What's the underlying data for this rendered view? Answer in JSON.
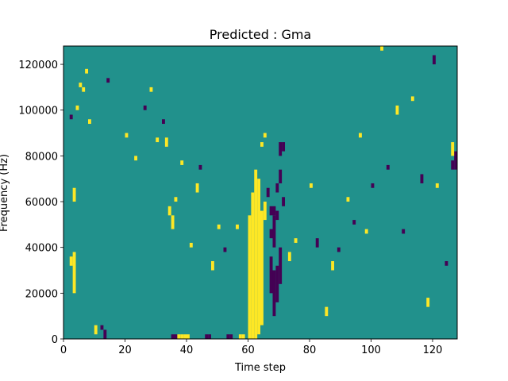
{
  "chart_data": {
    "type": "heatmap",
    "title": "Predicted : Gma",
    "xlabel": "Time step",
    "ylabel": "Frequency (Hz)",
    "xlim": [
      0,
      128
    ],
    "ylim": [
      0,
      128000
    ],
    "xticks": [
      0,
      20,
      40,
      60,
      80,
      100,
      120
    ],
    "yticks": [
      0,
      20000,
      40000,
      60000,
      80000,
      100000,
      120000
    ],
    "xtick_labels": [
      "0",
      "20",
      "40",
      "60",
      "80",
      "100",
      "120"
    ],
    "ytick_labels": [
      "0",
      "20000",
      "40000",
      "60000",
      "80000",
      "100000",
      "120000"
    ],
    "n_time_steps": 128,
    "n_freq_bins": 64,
    "value_levels": [
      -1,
      0,
      1
    ],
    "colors": {
      "low": "#440154",
      "mid": "#21918c",
      "high": "#fde725"
    },
    "background_level": 0,
    "cells": [
      {
        "t": 60,
        "f0": 0,
        "f1": 27,
        "v": 1
      },
      {
        "t": 61,
        "f0": 0,
        "f1": 32,
        "v": 1
      },
      {
        "t": 62,
        "f0": 0,
        "f1": 37,
        "v": 1
      },
      {
        "t": 63,
        "f0": 1,
        "f1": 35,
        "v": 1
      },
      {
        "t": 64,
        "f0": 3,
        "f1": 28,
        "v": 1
      },
      {
        "t": 65,
        "f0": 26,
        "f1": 30,
        "v": 1
      },
      {
        "t": 56,
        "f0": 24,
        "f1": 25,
        "v": 1
      },
      {
        "t": 64,
        "f0": 42,
        "f1": 43,
        "v": 1
      },
      {
        "t": 65,
        "f0": 44,
        "f1": 45,
        "v": 1
      },
      {
        "t": 35,
        "f0": 0,
        "f1": 1,
        "v": -1
      },
      {
        "t": 36,
        "f0": 0,
        "f1": 1,
        "v": -1
      },
      {
        "t": 37,
        "f0": 0,
        "f1": 1,
        "v": 1
      },
      {
        "t": 38,
        "f0": 0,
        "f1": 1,
        "v": 1
      },
      {
        "t": 39,
        "f0": 0,
        "f1": 1,
        "v": 1
      },
      {
        "t": 40,
        "f0": 0,
        "f1": 1,
        "v": 1
      },
      {
        "t": 46,
        "f0": 0,
        "f1": 1,
        "v": -1
      },
      {
        "t": 47,
        "f0": 0,
        "f1": 1,
        "v": -1
      },
      {
        "t": 53,
        "f0": 0,
        "f1": 1,
        "v": -1
      },
      {
        "t": 54,
        "f0": 0,
        "f1": 1,
        "v": -1
      },
      {
        "t": 57,
        "f0": 0,
        "f1": 1,
        "v": 1
      },
      {
        "t": 58,
        "f0": 0,
        "f1": 1,
        "v": 1
      },
      {
        "t": 68,
        "f0": 5,
        "f1": 15,
        "v": -1
      },
      {
        "t": 69,
        "f0": 8,
        "f1": 16,
        "v": -1
      },
      {
        "t": 67,
        "f0": 10,
        "f1": 18,
        "v": -1
      },
      {
        "t": 70,
        "f0": 12,
        "f1": 20,
        "v": -1
      },
      {
        "t": 68,
        "f0": 20,
        "f1": 27,
        "v": -1
      },
      {
        "t": 67,
        "f0": 27,
        "f1": 29,
        "v": -1
      },
      {
        "t": 68,
        "f0": 27,
        "f1": 29,
        "v": -1
      },
      {
        "t": 69,
        "f0": 26,
        "f1": 28,
        "v": -1
      },
      {
        "t": 70,
        "f0": 40,
        "f1": 43,
        "v": -1
      },
      {
        "t": 71,
        "f0": 41,
        "f1": 43,
        "v": -1
      },
      {
        "t": 66,
        "f0": 31,
        "f1": 33,
        "v": -1
      },
      {
        "t": 69,
        "f0": 32,
        "f1": 34,
        "v": -1
      },
      {
        "t": 70,
        "f0": 34,
        "f1": 37,
        "v": -1
      },
      {
        "t": 71,
        "f0": 29,
        "f1": 31,
        "v": -1
      },
      {
        "t": 67,
        "f0": 22,
        "f1": 24,
        "v": -1
      },
      {
        "t": 2,
        "f0": 16,
        "f1": 18,
        "v": 1
      },
      {
        "t": 3,
        "f0": 10,
        "f1": 19,
        "v": 1
      },
      {
        "t": 3,
        "f0": 30,
        "f1": 33,
        "v": 1
      },
      {
        "t": 4,
        "f0": 50,
        "f1": 51,
        "v": 1
      },
      {
        "t": 5,
        "f0": 55,
        "f1": 56,
        "v": 1
      },
      {
        "t": 6,
        "f0": 54,
        "f1": 55,
        "v": 1
      },
      {
        "t": 7,
        "f0": 58,
        "f1": 59,
        "v": 1
      },
      {
        "t": 8,
        "f0": 47,
        "f1": 48,
        "v": 1
      },
      {
        "t": 2,
        "f0": 48,
        "f1": 49,
        "v": -1
      },
      {
        "t": 14,
        "f0": 56,
        "f1": 57,
        "v": -1
      },
      {
        "t": 10,
        "f0": 1,
        "f1": 3,
        "v": 1
      },
      {
        "t": 12,
        "f0": 2,
        "f1": 3,
        "v": -1
      },
      {
        "t": 13,
        "f0": 0,
        "f1": 2,
        "v": -1
      },
      {
        "t": 20,
        "f0": 44,
        "f1": 45,
        "v": 1
      },
      {
        "t": 23,
        "f0": 39,
        "f1": 40,
        "v": 1
      },
      {
        "t": 26,
        "f0": 50,
        "f1": 51,
        "v": -1
      },
      {
        "t": 28,
        "f0": 54,
        "f1": 55,
        "v": 1
      },
      {
        "t": 30,
        "f0": 43,
        "f1": 44,
        "v": 1
      },
      {
        "t": 32,
        "f0": 47,
        "f1": 48,
        "v": -1
      },
      {
        "t": 33,
        "f0": 42,
        "f1": 44,
        "v": 1
      },
      {
        "t": 34,
        "f0": 27,
        "f1": 29,
        "v": 1
      },
      {
        "t": 35,
        "f0": 24,
        "f1": 27,
        "v": 1
      },
      {
        "t": 36,
        "f0": 30,
        "f1": 31,
        "v": 1
      },
      {
        "t": 38,
        "f0": 38,
        "f1": 39,
        "v": 1
      },
      {
        "t": 41,
        "f0": 20,
        "f1": 21,
        "v": 1
      },
      {
        "t": 43,
        "f0": 32,
        "f1": 34,
        "v": 1
      },
      {
        "t": 44,
        "f0": 37,
        "f1": 38,
        "v": -1
      },
      {
        "t": 48,
        "f0": 15,
        "f1": 17,
        "v": 1
      },
      {
        "t": 50,
        "f0": 24,
        "f1": 25,
        "v": 1
      },
      {
        "t": 52,
        "f0": 19,
        "f1": 20,
        "v": -1
      },
      {
        "t": 73,
        "f0": 17,
        "f1": 19,
        "v": 1
      },
      {
        "t": 75,
        "f0": 21,
        "f1": 22,
        "v": 1
      },
      {
        "t": 80,
        "f0": 33,
        "f1": 34,
        "v": 1
      },
      {
        "t": 82,
        "f0": 20,
        "f1": 22,
        "v": -1
      },
      {
        "t": 85,
        "f0": 5,
        "f1": 7,
        "v": 1
      },
      {
        "t": 87,
        "f0": 15,
        "f1": 17,
        "v": 1
      },
      {
        "t": 89,
        "f0": 19,
        "f1": 20,
        "v": -1
      },
      {
        "t": 92,
        "f0": 30,
        "f1": 31,
        "v": 1
      },
      {
        "t": 94,
        "f0": 25,
        "f1": 26,
        "v": -1
      },
      {
        "t": 98,
        "f0": 23,
        "f1": 24,
        "v": 1
      },
      {
        "t": 100,
        "f0": 33,
        "f1": 34,
        "v": -1
      },
      {
        "t": 103,
        "f0": 63,
        "f1": 64,
        "v": 1
      },
      {
        "t": 105,
        "f0": 37,
        "f1": 38,
        "v": -1
      },
      {
        "t": 108,
        "f0": 49,
        "f1": 51,
        "v": 1
      },
      {
        "t": 110,
        "f0": 23,
        "f1": 24,
        "v": -1
      },
      {
        "t": 113,
        "f0": 52,
        "f1": 53,
        "v": 1
      },
      {
        "t": 116,
        "f0": 34,
        "f1": 36,
        "v": -1
      },
      {
        "t": 118,
        "f0": 7,
        "f1": 9,
        "v": 1
      },
      {
        "t": 121,
        "f0": 33,
        "f1": 34,
        "v": 1
      },
      {
        "t": 124,
        "f0": 16,
        "f1": 17,
        "v": -1
      },
      {
        "t": 126,
        "f0": 37,
        "f1": 39,
        "v": -1
      },
      {
        "t": 127,
        "f0": 37,
        "f1": 41,
        "v": -1
      },
      {
        "t": 126,
        "f0": 40,
        "f1": 43,
        "v": 1
      },
      {
        "t": 120,
        "f0": 60,
        "f1": 62,
        "v": -1
      },
      {
        "t": 96,
        "f0": 44,
        "f1": 45,
        "v": 1
      }
    ]
  }
}
